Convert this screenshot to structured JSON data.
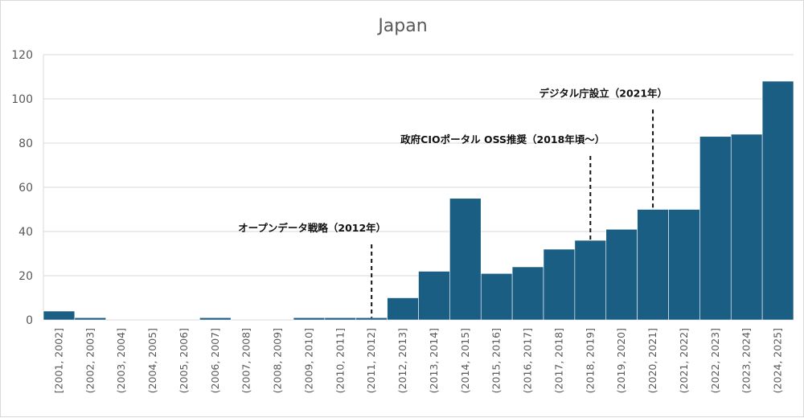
{
  "chart_data": {
    "type": "bar",
    "title": "Japan",
    "xlabel": "",
    "ylabel": "",
    "ylim": [
      0,
      120
    ],
    "yticks": [
      0,
      20,
      40,
      60,
      80,
      100,
      120
    ],
    "grid": true,
    "colors": {
      "bar": "#1a5e84",
      "grid": "#d9d9d9",
      "text": "#595959"
    },
    "categories": [
      "[2001, 2002]",
      "(2002, 2003]",
      "(2003, 2004]",
      "(2004, 2005]",
      "(2005, 2006]",
      "(2006, 2007]",
      "(2007, 2008]",
      "(2008, 2009]",
      "(2009, 2010]",
      "(2010, 2011]",
      "(2011, 2012]",
      "(2012, 2013]",
      "(2013, 2014]",
      "(2014, 2015]",
      "(2015, 2016]",
      "(2016, 2017]",
      "(2017, 2018]",
      "(2018, 2019]",
      "(2019, 2020]",
      "(2020, 2021]",
      "(2021, 2022]",
      "(2022, 2023]",
      "(2023, 2024]",
      "(2024, 2025]"
    ],
    "values": [
      4,
      1,
      0,
      0,
      0,
      1,
      0,
      0,
      1,
      1,
      1,
      10,
      22,
      55,
      21,
      24,
      32,
      36,
      41,
      50,
      50,
      83,
      84,
      108
    ],
    "annotations": [
      {
        "text": "オープンデータ戦略（2012年）",
        "category": "(2011, 2012]",
        "label_y": 40
      },
      {
        "text": "政府CIOポータル OSS推奨（2018年頃～）",
        "category": "(2018, 2019]",
        "label_y": 80
      },
      {
        "text": "デジタル庁設立（2021年）",
        "category": "(2020, 2021]",
        "label_y": 101
      }
    ]
  }
}
